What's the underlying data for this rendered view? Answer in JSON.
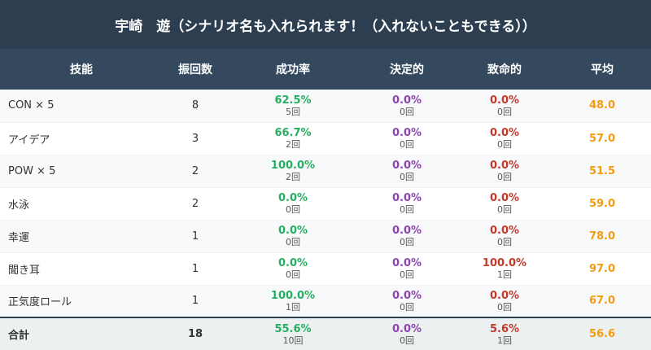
{
  "title": "宇崎　遊（シナリオ名も入れられます！（入れないこともできる））",
  "headers": {
    "skill": "技能",
    "rolls": "振回数",
    "success": "成功率",
    "decisive": "決定的",
    "fatal": "致命的",
    "average": "平均"
  },
  "colors": {
    "header_bg": "#2c3e50",
    "subheader_bg": "#34495e",
    "success": "#27ae60",
    "decisive": "#8e44ad",
    "fatal": "#c0392b",
    "average": "#f39c12"
  },
  "rows": [
    {
      "skill": "CON × 5",
      "rolls": "8",
      "success_pct": "62.5%",
      "success_cnt": "5回",
      "decisive_pct": "0.0%",
      "decisive_cnt": "0回",
      "fatal_pct": "0.0%",
      "fatal_cnt": "0回",
      "average": "48.0"
    },
    {
      "skill": "アイデア",
      "rolls": "3",
      "success_pct": "66.7%",
      "success_cnt": "2回",
      "decisive_pct": "0.0%",
      "decisive_cnt": "0回",
      "fatal_pct": "0.0%",
      "fatal_cnt": "0回",
      "average": "57.0"
    },
    {
      "skill": "POW × 5",
      "rolls": "2",
      "success_pct": "100.0%",
      "success_cnt": "2回",
      "decisive_pct": "0.0%",
      "decisive_cnt": "0回",
      "fatal_pct": "0.0%",
      "fatal_cnt": "0回",
      "average": "51.5"
    },
    {
      "skill": "水泳",
      "rolls": "2",
      "success_pct": "0.0%",
      "success_cnt": "0回",
      "decisive_pct": "0.0%",
      "decisive_cnt": "0回",
      "fatal_pct": "0.0%",
      "fatal_cnt": "0回",
      "average": "59.0"
    },
    {
      "skill": "幸運",
      "rolls": "1",
      "success_pct": "0.0%",
      "success_cnt": "0回",
      "decisive_pct": "0.0%",
      "decisive_cnt": "0回",
      "fatal_pct": "0.0%",
      "fatal_cnt": "0回",
      "average": "78.0"
    },
    {
      "skill": "聞き耳",
      "rolls": "1",
      "success_pct": "0.0%",
      "success_cnt": "0回",
      "decisive_pct": "0.0%",
      "decisive_cnt": "0回",
      "fatal_pct": "100.0%",
      "fatal_cnt": "1回",
      "average": "97.0"
    },
    {
      "skill": "正気度ロール",
      "rolls": "1",
      "success_pct": "100.0%",
      "success_cnt": "1回",
      "decisive_pct": "0.0%",
      "decisive_cnt": "0回",
      "fatal_pct": "0.0%",
      "fatal_cnt": "0回",
      "average": "67.0"
    }
  ],
  "total": {
    "label": "合計",
    "rolls": "18",
    "success_pct": "55.6%",
    "success_cnt": "10回",
    "decisive_pct": "0.0%",
    "decisive_cnt": "0回",
    "fatal_pct": "5.6%",
    "fatal_cnt": "1回",
    "average": "56.6"
  }
}
